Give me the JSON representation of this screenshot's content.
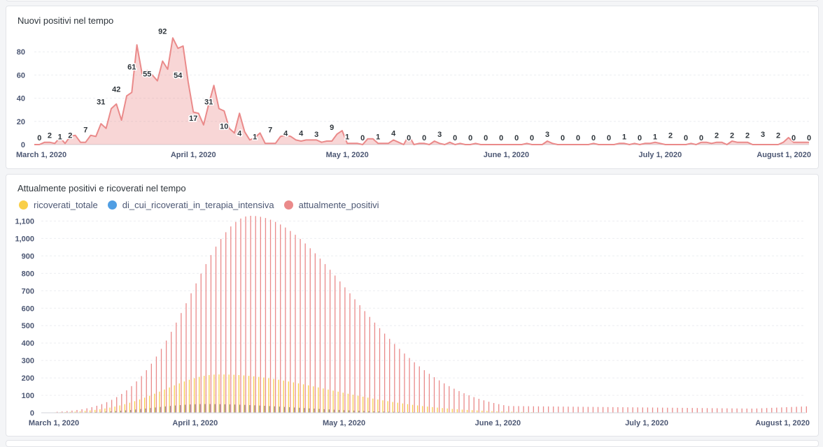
{
  "chart_data": [
    {
      "type": "area",
      "title": "Nuovi positivi nel tempo",
      "ylim": [
        0,
        100
      ],
      "yticks": [
        0,
        20,
        40,
        60,
        80
      ],
      "x_start": "2020-03-01",
      "xticks": [
        "March 1, 2020",
        "April 1, 2020",
        "May 1, 2020",
        "June 1, 2020",
        "July 1, 2020",
        "August 1, 2020"
      ],
      "series": [
        {
          "color": "#ea8a8a",
          "values": [
            0,
            0,
            2,
            2,
            1,
            6,
            1,
            7,
            8,
            2,
            2,
            8,
            7,
            18,
            14,
            31,
            35,
            21,
            42,
            45,
            86,
            61,
            64,
            60,
            55,
            72,
            65,
            92,
            83,
            85,
            54,
            28,
            27,
            17,
            35,
            51,
            31,
            29,
            14,
            10,
            27,
            11,
            4,
            6,
            10,
            1,
            1,
            1,
            7,
            8,
            7,
            4,
            3,
            4,
            4,
            4,
            2,
            3,
            3,
            9,
            12,
            1,
            1,
            1,
            0,
            5,
            5,
            1,
            1,
            1,
            4,
            2,
            0,
            8,
            0,
            1,
            1,
            0,
            3,
            1,
            0,
            2,
            0,
            1,
            0,
            0,
            1,
            0,
            0,
            0,
            0,
            0,
            0,
            0,
            0,
            0,
            1,
            0,
            0,
            0,
            3,
            1,
            0,
            0,
            0,
            0,
            0,
            0,
            0,
            1,
            0,
            0,
            0,
            0,
            1,
            1,
            0,
            1,
            0,
            1,
            1,
            2,
            1,
            0,
            0,
            0,
            0,
            0,
            1,
            0,
            2,
            2,
            1,
            2,
            2,
            0,
            3,
            2,
            2,
            2,
            0,
            0,
            0,
            0,
            0,
            0,
            2,
            6,
            2,
            2,
            2,
            2
          ]
        }
      ],
      "data_labels": [
        [
          1,
          0
        ],
        [
          3,
          2
        ],
        [
          5,
          1
        ],
        [
          7,
          2
        ],
        [
          10,
          7
        ],
        [
          13,
          31
        ],
        [
          16,
          42
        ],
        [
          19,
          61
        ],
        [
          22,
          55
        ],
        [
          25,
          92
        ],
        [
          28,
          54
        ],
        [
          31,
          17
        ],
        [
          34,
          31
        ],
        [
          37,
          10
        ],
        [
          40,
          4
        ],
        [
          43,
          1
        ],
        [
          46,
          7
        ],
        [
          49,
          4
        ],
        [
          52,
          4
        ],
        [
          55,
          3
        ],
        [
          58,
          9
        ],
        [
          61,
          1
        ],
        [
          64,
          0
        ],
        [
          67,
          1
        ],
        [
          70,
          4
        ],
        [
          73,
          0
        ],
        [
          76,
          0
        ],
        [
          79,
          3
        ],
        [
          82,
          0
        ],
        [
          85,
          0
        ],
        [
          88,
          0
        ],
        [
          91,
          0
        ],
        [
          94,
          0
        ],
        [
          97,
          0
        ],
        [
          100,
          3
        ],
        [
          103,
          0
        ],
        [
          106,
          0
        ],
        [
          109,
          0
        ],
        [
          112,
          0
        ],
        [
          115,
          1
        ],
        [
          118,
          0
        ],
        [
          121,
          1
        ],
        [
          124,
          2
        ],
        [
          127,
          0
        ],
        [
          130,
          0
        ],
        [
          133,
          2
        ],
        [
          136,
          2
        ],
        [
          139,
          2
        ],
        [
          142,
          3
        ],
        [
          145,
          2
        ],
        [
          148,
          0
        ],
        [
          151,
          0
        ],
        [
          154,
          2
        ],
        [
          156,
          2
        ]
      ]
    },
    {
      "type": "bar",
      "title": "Attualmente positivi e ricoverati nel tempo",
      "ylim": [
        0,
        1150
      ],
      "yticks": [
        0,
        100,
        200,
        300,
        400,
        500,
        600,
        700,
        800,
        900,
        1000,
        1100
      ],
      "ytick_labels": [
        "0",
        "100",
        "200",
        "300",
        "400",
        "500",
        "600",
        "700",
        "800",
        "900",
        "1,000",
        "1,100"
      ],
      "x_start": "2020-03-01",
      "xticks": [
        "March 1, 2020",
        "April 1, 2020",
        "May 1, 2020",
        "June 1, 2020",
        "July 1, 2020",
        "August 1, 2020"
      ],
      "series": [
        {
          "name": "ricoverati_totale",
          "color": "#f9cf48"
        },
        {
          "name": "di_cui_ricoverati_in_terapia_intensiva",
          "color": "#509ee3"
        },
        {
          "name": "attualmente_positivi",
          "color": "#ea8a8a"
        }
      ],
      "peaks": {
        "attualmente_positivi": 1130,
        "ricoverati_totale": 220,
        "di_cui_ricoverati_in_terapia_intensiva": 50
      }
    }
  ]
}
